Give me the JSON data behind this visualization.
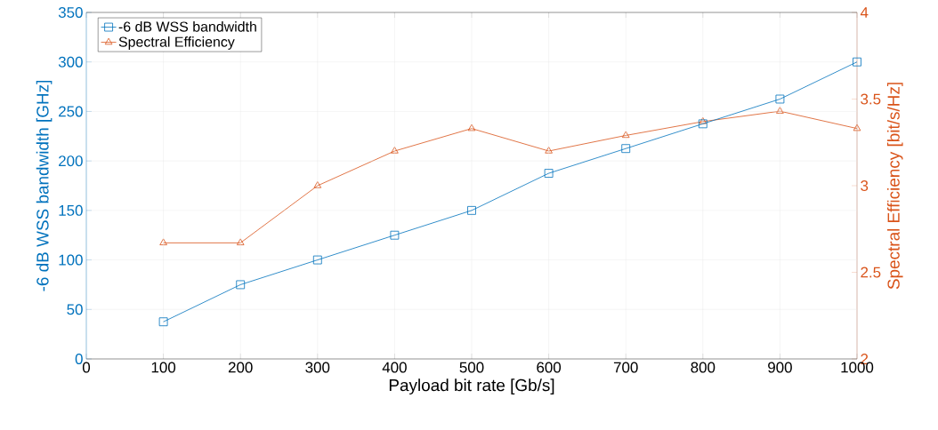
{
  "chart_data": {
    "type": "line",
    "xlabel": "Payload bit rate [Gb/s]",
    "ylabel": "-6 dB WSS bandwidth [GHz]",
    "y2label": "Spectral Efficiency [bit/s/Hz]",
    "x": [
      100,
      200,
      300,
      400,
      500,
      600,
      700,
      800,
      900,
      1000
    ],
    "series": [
      {
        "name": "-6 dB WSS bandwidth",
        "color": "#0072bd",
        "marker": "square",
        "values": [
          37.5,
          75,
          100,
          125,
          150,
          187.5,
          212.5,
          237.5,
          262.5,
          300
        ]
      },
      {
        "name": "Spectral Efficiency",
        "color": "#d95319",
        "marker": "triangle",
        "axis": "y2",
        "values": [
          2.67,
          2.67,
          3.0,
          3.2,
          3.33,
          3.2,
          3.29,
          3.37,
          3.43,
          3.33
        ]
      }
    ],
    "xlim": [
      0,
      1000
    ],
    "xticks": [
      0,
      100,
      200,
      300,
      400,
      500,
      600,
      700,
      800,
      900,
      1000
    ],
    "ylim": [
      0,
      350
    ],
    "yticks": [
      0,
      50,
      100,
      150,
      200,
      250,
      300,
      350
    ],
    "y2lim": [
      2,
      4
    ],
    "y2ticks": [
      2,
      2.5,
      3,
      3.5,
      4
    ],
    "grid": true,
    "legend": "top left",
    "line_style": "solid"
  }
}
